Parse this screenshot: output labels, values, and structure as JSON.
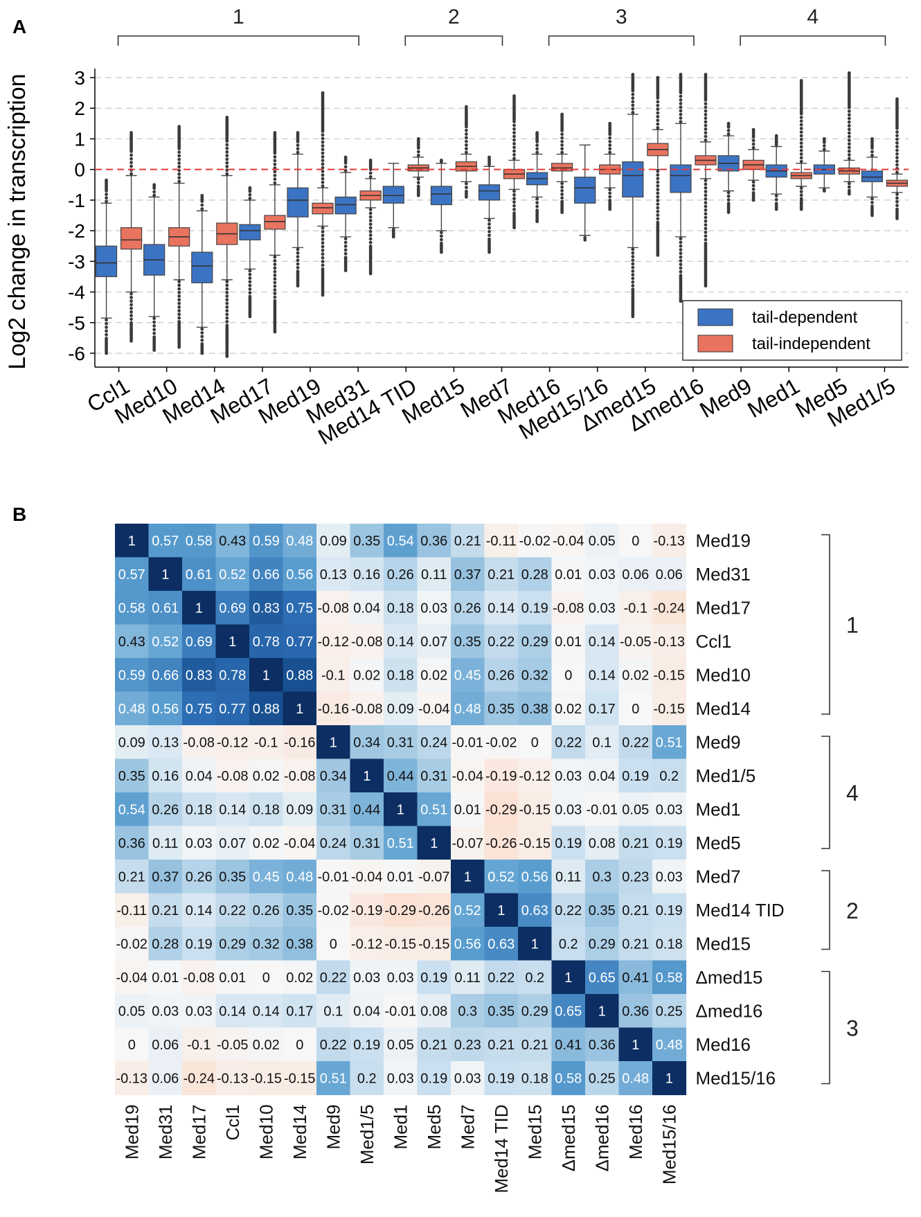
{
  "panels": {
    "a": "A",
    "b": "B"
  },
  "colors": {
    "tail_dependent": "#3c74c4",
    "tail_independent": "#e8735e",
    "zero_line": "#e53935",
    "heat_pos": "#0c2e63",
    "heat_neg": "#f4a582",
    "heat_zero": "#f7f7f7"
  },
  "chart_data": [
    {
      "type": "box",
      "title": "",
      "ylabel": "Log2 change in transcription",
      "xlabel": "",
      "ylim": [
        -6.3,
        3.3
      ],
      "yticks": [
        3,
        2,
        1,
        0,
        -1,
        -2,
        -3,
        -4,
        -5,
        -6
      ],
      "grid": "horizontal dashed",
      "reference_line": 0,
      "legend": {
        "position": "bottom-right",
        "entries": [
          "tail-dependent",
          "tail-independent"
        ]
      },
      "group_labels": [
        {
          "label": "1",
          "from": "Ccl1",
          "to": "Med31"
        },
        {
          "label": "2",
          "from": "Med14 TID",
          "to": "Med7"
        },
        {
          "label": "3",
          "from": "Med16",
          "to": "Δmed16"
        },
        {
          "label": "4",
          "from": "Med9",
          "to": "Med1/5"
        }
      ],
      "categories": [
        "Ccl1",
        "Med10",
        "Med14",
        "Med17",
        "Med19",
        "Med31",
        "Med14 TID",
        "Med15",
        "Med7",
        "Med16",
        "Med15/16",
        "Δmed15",
        "Δmed16",
        "Med9",
        "Med1",
        "Med5",
        "Med1/5"
      ],
      "series": [
        {
          "name": "tail-dependent",
          "boxes": [
            {
              "q1": -3.5,
              "median": -3.05,
              "q3": -2.5,
              "wlo": -4.85,
              "whi": -1.1,
              "fmin": -6.0,
              "fmax": -0.35
            },
            {
              "q1": -3.45,
              "median": -2.95,
              "q3": -2.45,
              "wlo": -4.8,
              "whi": -0.9,
              "fmin": -5.9,
              "fmax": -0.5
            },
            {
              "q1": -3.7,
              "median": -3.15,
              "q3": -2.7,
              "wlo": -5.15,
              "whi": -1.35,
              "fmin": -6.0,
              "fmax": -0.85
            },
            {
              "q1": -2.3,
              "median": -2.0,
              "q3": -1.8,
              "wlo": -3.25,
              "whi": -1.0,
              "fmin": -4.8,
              "fmax": -0.6
            },
            {
              "q1": -1.55,
              "median": -1.0,
              "q3": -0.6,
              "wlo": -2.55,
              "whi": 0.5,
              "fmin": -3.8,
              "fmax": 1.2
            },
            {
              "q1": -1.45,
              "median": -1.15,
              "q3": -0.9,
              "wlo": -2.2,
              "whi": -0.1,
              "fmin": -3.3,
              "fmax": 0.4
            },
            {
              "q1": -1.1,
              "median": -0.85,
              "q3": -0.55,
              "wlo": -1.9,
              "whi": 0.2,
              "fmin": -2.2,
              "fmax": 0.2
            },
            {
              "q1": -1.15,
              "median": -0.8,
              "q3": -0.55,
              "wlo": -2.0,
              "whi": 0.2,
              "fmin": -2.7,
              "fmax": 0.3
            },
            {
              "q1": -1.0,
              "median": -0.7,
              "q3": -0.5,
              "wlo": -1.6,
              "whi": 0.1,
              "fmin": -2.7,
              "fmax": 0.4
            },
            {
              "q1": -0.5,
              "median": -0.3,
              "q3": -0.1,
              "wlo": -0.9,
              "whi": 0.5,
              "fmin": -1.7,
              "fmax": 1.2
            },
            {
              "q1": -1.1,
              "median": -0.6,
              "q3": -0.25,
              "wlo": -2.15,
              "whi": 0.8,
              "fmin": -2.3,
              "fmax": 0.8
            },
            {
              "q1": -0.9,
              "median": -0.2,
              "q3": 0.25,
              "wlo": -2.55,
              "whi": 1.8,
              "fmin": -4.8,
              "fmax": 3.1
            },
            {
              "q1": -0.75,
              "median": -0.2,
              "q3": 0.15,
              "wlo": -2.2,
              "whi": 1.5,
              "fmin": -4.3,
              "fmax": 3.1
            },
            {
              "q1": -0.05,
              "median": 0.2,
              "q3": 0.45,
              "wlo": -0.7,
              "whi": 1.1,
              "fmin": -1.4,
              "fmax": 1.5
            },
            {
              "q1": -0.25,
              "median": -0.05,
              "q3": 0.15,
              "wlo": -0.8,
              "whi": 0.75,
              "fmin": -1.3,
              "fmax": 1.1
            },
            {
              "q1": -0.15,
              "median": 0.0,
              "q3": 0.15,
              "wlo": -0.6,
              "whi": 0.6,
              "fmin": -0.7,
              "fmax": 1.0
            },
            {
              "q1": -0.4,
              "median": -0.25,
              "q3": -0.05,
              "wlo": -0.9,
              "whi": 0.4,
              "fmin": -1.5,
              "fmax": 1.0
            }
          ]
        },
        {
          "name": "tail-independent",
          "boxes": [
            {
              "q1": -2.6,
              "median": -2.3,
              "q3": -1.9,
              "wlo": -4.0,
              "whi": -0.2,
              "fmin": -5.6,
              "fmax": 1.2
            },
            {
              "q1": -2.5,
              "median": -2.2,
              "q3": -1.9,
              "wlo": -3.6,
              "whi": -0.45,
              "fmin": -5.8,
              "fmax": 1.4
            },
            {
              "q1": -2.45,
              "median": -2.1,
              "q3": -1.75,
              "wlo": -3.6,
              "whi": -0.2,
              "fmin": -6.1,
              "fmax": 1.7
            },
            {
              "q1": -1.95,
              "median": -1.7,
              "q3": -1.5,
              "wlo": -2.8,
              "whi": -0.5,
              "fmin": -5.3,
              "fmax": 1.2
            },
            {
              "q1": -1.45,
              "median": -1.25,
              "q3": -1.1,
              "wlo": -1.85,
              "whi": -0.6,
              "fmin": -4.1,
              "fmax": 2.5
            },
            {
              "q1": -1.0,
              "median": -0.85,
              "q3": -0.7,
              "wlo": -1.25,
              "whi": -0.3,
              "fmin": -3.4,
              "fmax": 0.3
            },
            {
              "q1": -0.05,
              "median": 0.05,
              "q3": 0.15,
              "wlo": -0.25,
              "whi": 0.4,
              "fmin": -0.85,
              "fmax": 1.0
            },
            {
              "q1": -0.05,
              "median": 0.1,
              "q3": 0.25,
              "wlo": -0.4,
              "whi": 0.5,
              "fmin": -0.9,
              "fmax": 2.05
            },
            {
              "q1": -0.3,
              "median": -0.15,
              "q3": 0.0,
              "wlo": -0.65,
              "whi": 0.3,
              "fmin": -1.9,
              "fmax": 2.4
            },
            {
              "q1": -0.05,
              "median": 0.05,
              "q3": 0.2,
              "wlo": -0.4,
              "whi": 0.5,
              "fmin": -1.4,
              "fmax": 1.8
            },
            {
              "q1": -0.15,
              "median": 0.0,
              "q3": 0.15,
              "wlo": -0.6,
              "whi": 0.5,
              "fmin": -1.3,
              "fmax": 1.5
            },
            {
              "q1": 0.45,
              "median": 0.65,
              "q3": 0.85,
              "wlo": 0.0,
              "whi": 1.3,
              "fmin": -2.8,
              "fmax": 3.0
            },
            {
              "q1": 0.15,
              "median": 0.3,
              "q3": 0.45,
              "wlo": -0.3,
              "whi": 0.9,
              "fmin": -3.8,
              "fmax": 3.1
            },
            {
              "q1": 0.0,
              "median": 0.15,
              "q3": 0.3,
              "wlo": -0.35,
              "whi": 0.65,
              "fmin": -1.0,
              "fmax": 1.3
            },
            {
              "q1": -0.3,
              "median": -0.2,
              "q3": -0.1,
              "wlo": -0.55,
              "whi": 0.2,
              "fmin": -1.3,
              "fmax": 2.9
            },
            {
              "q1": -0.15,
              "median": -0.05,
              "q3": 0.05,
              "wlo": -0.4,
              "whi": 0.3,
              "fmin": -0.8,
              "fmax": 3.15
            },
            {
              "q1": -0.55,
              "median": -0.45,
              "q3": -0.35,
              "wlo": -0.75,
              "whi": -0.15,
              "fmin": -1.6,
              "fmax": 2.3
            }
          ]
        }
      ]
    },
    {
      "type": "heatmap",
      "title": "",
      "row_labels": [
        "Med19",
        "Med31",
        "Med17",
        "Ccl1",
        "Med10",
        "Med14",
        "Med9",
        "Med1/5",
        "Med1",
        "Med5",
        "Med7",
        "Med14 TID",
        "Med15",
        "Δmed15",
        "Δmed16",
        "Med16",
        "Med15/16"
      ],
      "col_labels": [
        "Med19",
        "Med31",
        "Med17",
        "Ccl1",
        "Med10",
        "Med14",
        "Med9",
        "Med1/5",
        "Med1",
        "Med5",
        "Med7",
        "Med14 TID",
        "Med15",
        "Δmed15",
        "Δmed16",
        "Med16",
        "Med15/16"
      ],
      "groups": [
        {
          "label": "1",
          "rows": [
            0,
            5
          ]
        },
        {
          "label": "4",
          "rows": [
            6,
            9
          ]
        },
        {
          "label": "2",
          "rows": [
            10,
            12
          ]
        },
        {
          "label": "3",
          "rows": [
            13,
            16
          ]
        }
      ],
      "values": [
        [
          1,
          0.57,
          0.58,
          0.43,
          0.59,
          0.48,
          0.09,
          0.35,
          0.54,
          0.36,
          0.21,
          -0.11,
          -0.02,
          -0.04,
          0.05,
          0,
          -0.13
        ],
        [
          0.57,
          1,
          0.61,
          0.52,
          0.66,
          0.56,
          0.13,
          0.16,
          0.26,
          0.11,
          0.37,
          0.21,
          0.28,
          0.01,
          0.03,
          0.06,
          0.06
        ],
        [
          0.58,
          0.61,
          1,
          0.69,
          0.83,
          0.75,
          -0.08,
          0.04,
          0.18,
          0.03,
          0.26,
          0.14,
          0.19,
          -0.08,
          0.03,
          -0.1,
          -0.24
        ],
        [
          0.43,
          0.52,
          0.69,
          1,
          0.78,
          0.77,
          -0.12,
          -0.08,
          0.14,
          0.07,
          0.35,
          0.22,
          0.29,
          0.01,
          0.14,
          -0.05,
          -0.13
        ],
        [
          0.59,
          0.66,
          0.83,
          0.78,
          1,
          0.88,
          -0.1,
          0.02,
          0.18,
          0.02,
          0.45,
          0.26,
          0.32,
          0,
          0.14,
          0.02,
          -0.15
        ],
        [
          0.48,
          0.56,
          0.75,
          0.77,
          0.88,
          1,
          -0.16,
          -0.08,
          0.09,
          -0.04,
          0.48,
          0.35,
          0.38,
          0.02,
          0.17,
          0,
          -0.15
        ],
        [
          0.09,
          0.13,
          -0.08,
          -0.12,
          -0.1,
          -0.16,
          1,
          0.34,
          0.31,
          0.24,
          -0.01,
          -0.02,
          0,
          0.22,
          0.1,
          0.22,
          0.51
        ],
        [
          0.35,
          0.16,
          0.04,
          -0.08,
          0.02,
          -0.08,
          0.34,
          1,
          0.44,
          0.31,
          -0.04,
          -0.19,
          -0.12,
          0.03,
          0.04,
          0.19,
          0.2
        ],
        [
          0.54,
          0.26,
          0.18,
          0.14,
          0.18,
          0.09,
          0.31,
          0.44,
          1,
          0.51,
          0.01,
          -0.29,
          -0.15,
          0.03,
          -0.01,
          0.05,
          0.03
        ],
        [
          0.36,
          0.11,
          0.03,
          0.07,
          0.02,
          -0.04,
          0.24,
          0.31,
          0.51,
          1,
          -0.07,
          -0.26,
          -0.15,
          0.19,
          0.08,
          0.21,
          0.19
        ],
        [
          0.21,
          0.37,
          0.26,
          0.35,
          0.45,
          0.48,
          -0.01,
          -0.04,
          0.01,
          -0.07,
          1,
          0.52,
          0.56,
          0.11,
          0.3,
          0.23,
          0.03
        ],
        [
          -0.11,
          0.21,
          0.14,
          0.22,
          0.26,
          0.35,
          -0.02,
          -0.19,
          -0.29,
          -0.26,
          0.52,
          1,
          0.63,
          0.22,
          0.35,
          0.21,
          0.19
        ],
        [
          -0.02,
          0.28,
          0.19,
          0.29,
          0.32,
          0.38,
          0,
          -0.12,
          -0.15,
          -0.15,
          0.56,
          0.63,
          1,
          0.2,
          0.29,
          0.21,
          0.18
        ],
        [
          -0.04,
          0.01,
          -0.08,
          0.01,
          0,
          0.02,
          0.22,
          0.03,
          0.03,
          0.19,
          0.11,
          0.22,
          0.2,
          1,
          0.65,
          0.41,
          0.58
        ],
        [
          0.05,
          0.03,
          0.03,
          0.14,
          0.14,
          0.17,
          0.1,
          0.04,
          -0.01,
          0.08,
          0.3,
          0.35,
          0.29,
          0.65,
          1,
          0.36,
          0.25
        ],
        [
          0,
          0.06,
          -0.1,
          -0.05,
          0.02,
          0,
          0.22,
          0.19,
          0.05,
          0.21,
          0.23,
          0.21,
          0.21,
          0.41,
          0.36,
          1,
          0.48
        ],
        [
          -0.13,
          0.06,
          -0.24,
          -0.13,
          -0.15,
          -0.15,
          0.51,
          0.2,
          0.03,
          0.19,
          0.03,
          0.19,
          0.18,
          0.58,
          0.25,
          0.48,
          1
        ]
      ]
    }
  ]
}
